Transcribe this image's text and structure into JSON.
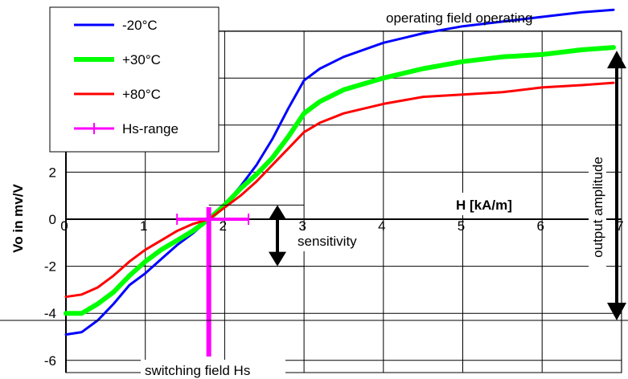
{
  "chart_data": {
    "type": "line",
    "title": "",
    "xlabel": "H [kA/m]",
    "ylabel": "Vo in mv/V",
    "xlim": [
      0,
      7
    ],
    "ylim": [
      -6,
      8
    ],
    "x_ticks": [
      "0",
      "1",
      "2",
      "3",
      "4",
      "5",
      "6",
      "7"
    ],
    "y_ticks": [
      "-6",
      "-4",
      "-2",
      "0",
      "2"
    ],
    "series": [
      {
        "name": "-20°C",
        "color": "#0000ff",
        "x": [
          0,
          0.2,
          0.4,
          0.6,
          0.8,
          1.0,
          1.2,
          1.4,
          1.6,
          1.8,
          2.0,
          2.2,
          2.4,
          2.6,
          2.8,
          3.0,
          3.2,
          3.5,
          4.0,
          4.5,
          5.0,
          5.5,
          6.0,
          6.5,
          6.9
        ],
        "y": [
          -4.9,
          -4.8,
          -4.3,
          -3.6,
          -2.8,
          -2.3,
          -1.7,
          -1.1,
          -0.6,
          0.0,
          0.6,
          1.4,
          2.3,
          3.4,
          4.7,
          5.9,
          6.4,
          6.9,
          7.5,
          7.9,
          8.2,
          8.4,
          8.6,
          8.8,
          8.9
        ]
      },
      {
        "name": "+30°C",
        "color": "#00ff00",
        "x": [
          0,
          0.2,
          0.4,
          0.6,
          0.8,
          1.0,
          1.2,
          1.4,
          1.6,
          1.8,
          2.0,
          2.2,
          2.4,
          2.6,
          2.8,
          3.0,
          3.2,
          3.5,
          4.0,
          4.5,
          5.0,
          5.5,
          6.0,
          6.5,
          6.9
        ],
        "y": [
          -4.0,
          -4.0,
          -3.6,
          -3.1,
          -2.4,
          -1.8,
          -1.3,
          -0.9,
          -0.5,
          0.0,
          0.6,
          1.3,
          1.9,
          2.6,
          3.5,
          4.5,
          5.0,
          5.5,
          6.0,
          6.4,
          6.7,
          6.9,
          7.0,
          7.2,
          7.3
        ]
      },
      {
        "name": "+80°C",
        "color": "#ff0000",
        "x": [
          0,
          0.2,
          0.4,
          0.6,
          0.8,
          1.0,
          1.2,
          1.4,
          1.6,
          1.8,
          2.0,
          2.2,
          2.4,
          2.6,
          2.8,
          3.0,
          3.2,
          3.5,
          4.0,
          4.5,
          5.0,
          5.5,
          6.0,
          6.5,
          6.9
        ],
        "y": [
          -3.3,
          -3.2,
          -2.9,
          -2.4,
          -1.8,
          -1.3,
          -0.9,
          -0.5,
          -0.2,
          0.0,
          0.5,
          1.0,
          1.6,
          2.3,
          3.0,
          3.7,
          4.1,
          4.5,
          4.9,
          5.2,
          5.3,
          5.4,
          5.6,
          5.7,
          5.8
        ]
      }
    ],
    "hs_range": {
      "name": "Hs-range",
      "color": "#ff00ff",
      "x_start": 1.4,
      "x_end": 2.3,
      "center_x": 1.8,
      "center_y": 0
    },
    "grid": true,
    "legend_position": "top-left",
    "annotations": {
      "sensitivity": "sensitivity",
      "output_amplitude": "output amplitude",
      "switching_field": "switching field Hs",
      "top_text": "operating field    operating"
    }
  }
}
